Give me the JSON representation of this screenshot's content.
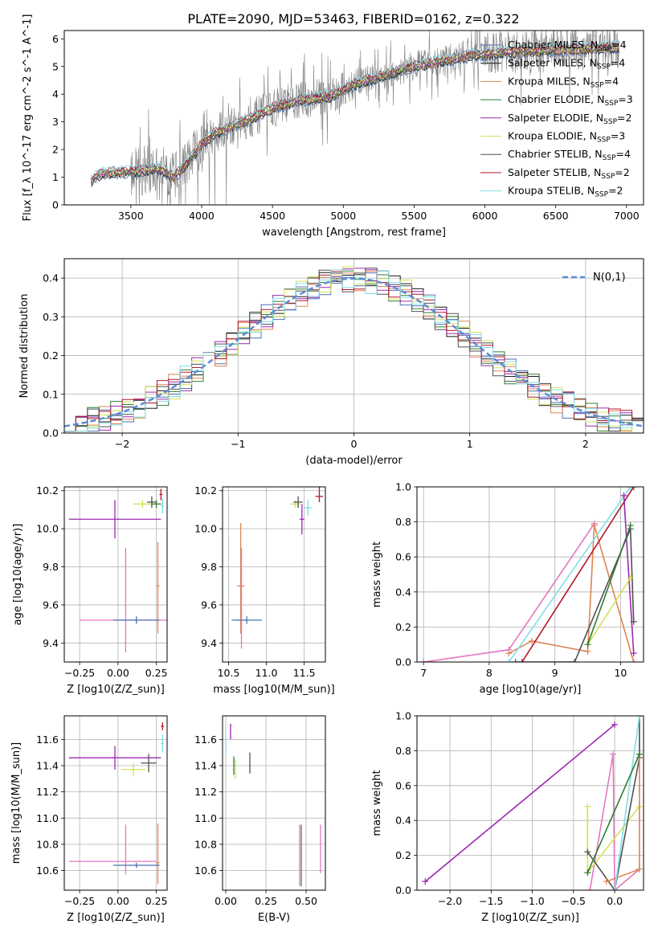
{
  "title": "PLATE=2090, MJD=53463, FIBERID=0162, z=0.322",
  "colors": {
    "Chabrier MILES": "#4c72b0",
    "Salpeter MILES": "#1a1a1a",
    "Kroupa MILES": "#dd8452",
    "Chabrier ELODIE": "#2e7d32",
    "Salpeter ELODIE": "#9c27b0",
    "Kroupa ELODIE": "#d4e157",
    "Chabrier STELIB": "#505050",
    "Salpeter STELIB": "#b2182b",
    "Kroupa STELIB": "#80deea",
    "data": "#808080",
    "normal": "#5b8bd6",
    "pink": "#e377c2"
  },
  "chart_data": [
    {
      "id": "spectrum",
      "type": "line",
      "xlabel": "wavelength [Angstrom, rest frame]",
      "ylabel": "Flux [f_λ 10^-17 erg cm^-2 s^-1 A^-1]",
      "xlim": [
        3030,
        7120
      ],
      "ylim": [
        0,
        6.3
      ],
      "xticks": [
        3500,
        4000,
        4500,
        5000,
        5500,
        6000,
        6500,
        7000
      ],
      "yticks": [
        0,
        1,
        2,
        3,
        4,
        5,
        6
      ],
      "legend_position": "right",
      "legend": [
        {
          "base": "Chabrier MILES",
          "n": "4"
        },
        {
          "base": "Salpeter MILES",
          "n": "4"
        },
        {
          "base": "Kroupa MILES",
          "n": "4"
        },
        {
          "base": "Chabrier ELODIE",
          "n": "3"
        },
        {
          "base": "Salpeter ELODIE",
          "n": "2"
        },
        {
          "base": "Kroupa ELODIE",
          "n": "3"
        },
        {
          "base": "Chabrier STELIB",
          "n": "4"
        },
        {
          "base": "Salpeter STELIB",
          "n": "2"
        },
        {
          "base": "Kroupa STELIB",
          "n": "2"
        }
      ],
      "model_continuum": [
        [
          3220,
          0.9
        ],
        [
          3300,
          1.15
        ],
        [
          3500,
          1.2
        ],
        [
          3700,
          1.3
        ],
        [
          3800,
          1.0
        ],
        [
          3900,
          1.5
        ],
        [
          4000,
          2.2
        ],
        [
          4100,
          2.6
        ],
        [
          4300,
          3.0
        ],
        [
          4500,
          3.5
        ],
        [
          4700,
          3.8
        ],
        [
          4900,
          3.9
        ],
        [
          5100,
          4.4
        ],
        [
          5300,
          4.7
        ],
        [
          5500,
          5.0
        ],
        [
          5700,
          5.2
        ],
        [
          5900,
          5.4
        ],
        [
          6100,
          5.5
        ],
        [
          6300,
          5.55
        ],
        [
          6500,
          5.6
        ],
        [
          6700,
          5.65
        ],
        [
          6950,
          5.7
        ]
      ]
    },
    {
      "id": "residuals",
      "type": "histogram",
      "xlabel": "(data-model)/error",
      "ylabel": "Normed distribution",
      "xlim": [
        -2.5,
        2.5
      ],
      "ylim": [
        0,
        0.45
      ],
      "xticks": [
        -2,
        -1,
        0,
        1,
        2
      ],
      "yticks": [
        0.0,
        0.1,
        0.2,
        0.3,
        0.4
      ],
      "legend": "N(0,1)",
      "legend_position": "top-right",
      "bin_width": 0.1
    },
    {
      "id": "age_vs_Z",
      "type": "errorbar",
      "xlabel": "Z [log10(Z/Z_sun)]",
      "ylabel": "age [log10(age/yr)]",
      "xlim": [
        -0.35,
        0.32
      ],
      "ylim": [
        9.3,
        10.22
      ],
      "xticks": [
        -0.25,
        0.0,
        0.25
      ],
      "yticks": [
        9.4,
        9.6,
        9.8,
        10.0,
        10.2
      ],
      "points": [
        {
          "series": "Salpeter ELODIE",
          "x": -0.02,
          "xerr": [
            0.3,
            0.3
          ],
          "y": 10.05,
          "yerr": [
            0.1,
            0.1
          ]
        },
        {
          "series": "Kroupa ELODIE",
          "x": 0.16,
          "xerr": [
            0.06,
            0.06
          ],
          "y": 10.13,
          "yerr": [
            0.02,
            0.02
          ]
        },
        {
          "series": "Chabrier STELIB",
          "x": 0.22,
          "xerr": [
            0.03,
            0.03
          ],
          "y": 10.14,
          "yerr": [
            0.03,
            0.03
          ]
        },
        {
          "series": "Salpeter STELIB",
          "x": 0.28,
          "xerr": [
            0.01,
            0.01
          ],
          "y": 10.18,
          "yerr": [
            0.03,
            0.03
          ]
        },
        {
          "series": "Kroupa STELIB",
          "x": 0.29,
          "xerr": [
            0.01,
            0.01
          ],
          "y": 10.12,
          "yerr": [
            0.04,
            0.04
          ]
        },
        {
          "series": "Chabrier ELODIE",
          "x": 0.25,
          "xerr": [
            0.03,
            0.03
          ],
          "y": 10.13,
          "yerr": [
            0.02,
            0.02
          ]
        },
        {
          "series": "Kroupa MILES",
          "x": 0.26,
          "xerr": [
            0.01,
            0.01
          ],
          "y": 9.7,
          "yerr": [
            0.25,
            0.23
          ]
        },
        {
          "series": "pink",
          "x": 0.05,
          "xerr": [
            0.3,
            0.3
          ],
          "y": 9.52,
          "yerr": [
            0.17,
            0.38
          ]
        },
        {
          "series": "Chabrier MILES",
          "x": 0.12,
          "xerr": [
            0.15,
            0.15
          ],
          "y": 9.52,
          "yerr": [
            0.02,
            0.02
          ]
        }
      ]
    },
    {
      "id": "age_vs_mass",
      "type": "errorbar",
      "xlabel": "mass [log10(M/M_sun)]",
      "ylabel": "",
      "xlim": [
        10.42,
        11.78
      ],
      "ylim": [
        9.3,
        10.22
      ],
      "xticks": [
        10.5,
        11.0,
        11.5
      ],
      "yticks": [
        9.4,
        9.6,
        9.8,
        10.0,
        10.2
      ],
      "points": [
        {
          "series": "Kroupa ELODIE",
          "x": 11.38,
          "xerr": [
            0.06,
            0.06
          ],
          "y": 10.13,
          "yerr": [
            0.02,
            0.02
          ]
        },
        {
          "series": "Salpeter ELODIE",
          "x": 11.47,
          "xerr": [
            0.03,
            0.03
          ],
          "y": 10.05,
          "yerr": [
            0.08,
            0.08
          ]
        },
        {
          "series": "Chabrier STELIB",
          "x": 11.42,
          "xerr": [
            0.06,
            0.06
          ],
          "y": 10.14,
          "yerr": [
            0.03,
            0.03
          ]
        },
        {
          "series": "Kroupa STELIB",
          "x": 11.55,
          "xerr": [
            0.05,
            0.05
          ],
          "y": 10.11,
          "yerr": [
            0.04,
            0.04
          ]
        },
        {
          "series": "Salpeter STELIB",
          "x": 11.7,
          "xerr": [
            0.05,
            0.05
          ],
          "y": 10.17,
          "yerr": [
            0.03,
            0.12
          ]
        },
        {
          "series": "Kroupa MILES",
          "x": 10.66,
          "xerr": [
            0.05,
            0.05
          ],
          "y": 9.7,
          "yerr": [
            0.25,
            0.33
          ]
        },
        {
          "series": "pink",
          "x": 10.67,
          "xerr": [
            0.06,
            0.06
          ],
          "y": 9.52,
          "yerr": [
            0.15,
            0.38
          ]
        },
        {
          "series": "Chabrier MILES",
          "x": 10.74,
          "xerr": [
            0.2,
            0.2
          ],
          "y": 9.52,
          "yerr": [
            0.02,
            0.02
          ]
        }
      ]
    },
    {
      "id": "mass_weight_vs_age",
      "type": "line",
      "xlabel": "age [log10(age/yr)]",
      "ylabel": "mass weight",
      "xlim": [
        6.9,
        10.35
      ],
      "ylim": [
        0,
        1
      ],
      "xticks": [
        7,
        8,
        9,
        10
      ],
      "yticks": [
        0.0,
        0.2,
        0.4,
        0.6,
        0.8,
        1.0
      ],
      "series": [
        {
          "name": "pink",
          "points": [
            [
              7.0,
              0.0
            ],
            [
              8.3,
              0.07
            ],
            [
              9.6,
              0.79
            ]
          ]
        },
        {
          "name": "Kroupa MILES",
          "points": [
            [
              8.3,
              0.05
            ],
            [
              8.65,
              0.12
            ],
            [
              9.5,
              0.06
            ],
            [
              9.6,
              0.78
            ],
            [
              10.2,
              0.0
            ]
          ]
        },
        {
          "name": "Kroupa STELIB",
          "points": [
            [
              8.3,
              0.0
            ],
            [
              10.15,
              1.0
            ]
          ]
        },
        {
          "name": "Salpeter STELIB",
          "points": [
            [
              8.5,
              0.0
            ],
            [
              10.2,
              1.0
            ]
          ]
        },
        {
          "name": "Chabrier STELIB",
          "points": [
            [
              8.4,
              0.0
            ],
            [
              9.3,
              0.0
            ],
            [
              10.15,
              0.76
            ],
            [
              10.2,
              0.23
            ]
          ]
        },
        {
          "name": "Salpeter ELODIE",
          "points": [
            [
              10.05,
              0.95
            ],
            [
              10.2,
              0.05
            ]
          ]
        },
        {
          "name": "Kroupa ELODIE",
          "points": [
            [
              9.5,
              0.1
            ],
            [
              10.15,
              0.48
            ]
          ]
        },
        {
          "name": "Chabrier ELODIE",
          "points": [
            [
              9.5,
              0.1
            ],
            [
              10.15,
              0.78
            ]
          ]
        }
      ]
    },
    {
      "id": "mass_vs_Z",
      "type": "errorbar",
      "xlabel": "Z [log10(Z/Z_sun)]",
      "ylabel": "mass [log10(M/M_sun)]",
      "xlim": [
        -0.35,
        0.32
      ],
      "ylim": [
        10.45,
        11.78
      ],
      "xticks": [
        -0.25,
        0.0,
        0.25
      ],
      "yticks": [
        10.6,
        10.8,
        11.0,
        11.2,
        11.4,
        11.6
      ],
      "points": [
        {
          "series": "Salpeter ELODIE",
          "x": -0.02,
          "xerr": [
            0.3,
            0.3
          ],
          "y": 11.46,
          "yerr": [
            0.09,
            0.09
          ]
        },
        {
          "series": "Kroupa ELODIE",
          "x": 0.1,
          "xerr": [
            0.08,
            0.08
          ],
          "y": 11.37,
          "yerr": [
            0.05,
            0.05
          ]
        },
        {
          "series": "Chabrier STELIB",
          "x": 0.2,
          "xerr": [
            0.05,
            0.05
          ],
          "y": 11.42,
          "yerr": [
            0.07,
            0.07
          ]
        },
        {
          "series": "Salpeter STELIB",
          "x": 0.29,
          "xerr": [
            0.01,
            0.01
          ],
          "y": 11.7,
          "yerr": [
            0.03,
            0.03
          ]
        },
        {
          "series": "Kroupa STELIB",
          "x": 0.29,
          "xerr": [
            0.01,
            0.01
          ],
          "y": 11.57,
          "yerr": [
            0.07,
            0.07
          ]
        },
        {
          "series": "Kroupa MILES",
          "x": 0.26,
          "xerr": [
            0.01,
            0.01
          ],
          "y": 10.66,
          "yerr": [
            0.16,
            0.3
          ]
        },
        {
          "series": "pink",
          "x": 0.05,
          "xerr": [
            0.37,
            0.2
          ],
          "y": 10.67,
          "yerr": [
            0.1,
            0.28
          ]
        },
        {
          "series": "Chabrier MILES",
          "x": 0.12,
          "xerr": [
            0.15,
            0.15
          ],
          "y": 10.64,
          "yerr": [
            0.02,
            0.02
          ]
        }
      ]
    },
    {
      "id": "mass_vs_EBV",
      "type": "errorbar",
      "xlabel": "E(B-V)",
      "ylabel": "",
      "xlim": [
        -0.02,
        0.62
      ],
      "ylim": [
        10.45,
        11.78
      ],
      "xticks": [
        0.0,
        0.25,
        0.5
      ],
      "yticks": [
        10.6,
        10.8,
        11.0,
        11.2,
        11.4,
        11.6
      ],
      "points": [
        {
          "series": "Kroupa STELIB",
          "x": 0.0,
          "xerr": [
            0,
            0
          ],
          "y": 11.57,
          "yerr": [
            0.08,
            0.08
          ]
        },
        {
          "series": "Salpeter ELODIE",
          "x": 0.03,
          "xerr": [
            0,
            0
          ],
          "y": 11.64,
          "yerr": [
            0.04,
            0.08
          ]
        },
        {
          "series": "Chabrier ELODIE",
          "x": 0.05,
          "xerr": [
            0,
            0
          ],
          "y": 11.4,
          "yerr": [
            0.07,
            0.07
          ]
        },
        {
          "series": "Kroupa ELODIE",
          "x": 0.06,
          "xerr": [
            0,
            0
          ],
          "y": 11.35,
          "yerr": [
            0.05,
            0.1
          ]
        },
        {
          "series": "Chabrier STELIB",
          "x": 0.15,
          "xerr": [
            0,
            0
          ],
          "y": 11.42,
          "yerr": [
            0.08,
            0.08
          ]
        },
        {
          "series": "Kroupa MILES",
          "x": 0.46,
          "xerr": [
            0,
            0
          ],
          "y": 10.75,
          "yerr": [
            0.27,
            0.2
          ]
        },
        {
          "series": "Chabrier MILES",
          "x": 0.47,
          "xerr": [
            0,
            0
          ],
          "y": 10.75,
          "yerr": [
            0.27,
            0.2
          ]
        },
        {
          "series": "pink",
          "x": 0.59,
          "xerr": [
            0,
            0
          ],
          "y": 10.76,
          "yerr": [
            0.18,
            0.19
          ]
        }
      ]
    },
    {
      "id": "mass_weight_vs_Z",
      "type": "line",
      "xlabel": "Z [log10(Z/Z_sun)]",
      "ylabel": "mass weight",
      "xlim": [
        -2.4,
        0.35
      ],
      "ylim": [
        0,
        1
      ],
      "xticks": [
        -2.0,
        -1.5,
        -1.0,
        -0.5,
        0.0
      ],
      "yticks": [
        0.0,
        0.2,
        0.4,
        0.6,
        0.8,
        1.0
      ],
      "series": [
        {
          "name": "Salpeter ELODIE",
          "points": [
            [
              -2.3,
              0.05
            ],
            [
              0.0,
              0.95
            ]
          ]
        },
        {
          "name": "pink",
          "points": [
            [
              -0.3,
              0.0
            ],
            [
              -0.02,
              0.78
            ],
            [
              0.0,
              0.0
            ],
            [
              0.3,
              0.12
            ]
          ]
        },
        {
          "name": "Kroupa ELODIE",
          "points": [
            [
              -0.33,
              0.48
            ],
            [
              -0.33,
              0.1
            ],
            [
              0.3,
              0.48
            ]
          ]
        },
        {
          "name": "Chabrier STELIB",
          "points": [
            [
              -0.33,
              0.22
            ],
            [
              0.0,
              0.0
            ],
            [
              0.3,
              0.76
            ],
            [
              0.3,
              1.0
            ]
          ]
        },
        {
          "name": "Kroupa MILES",
          "points": [
            [
              -0.1,
              0.05
            ],
            [
              0.3,
              0.12
            ],
            [
              0.3,
              0.78
            ]
          ]
        },
        {
          "name": "Kroupa STELIB",
          "points": [
            [
              0.0,
              0.0
            ],
            [
              0.3,
              1.0
            ]
          ]
        },
        {
          "name": "Chabrier ELODIE",
          "points": [
            [
              -0.33,
              0.1
            ],
            [
              0.3,
              0.78
            ]
          ]
        }
      ]
    }
  ]
}
